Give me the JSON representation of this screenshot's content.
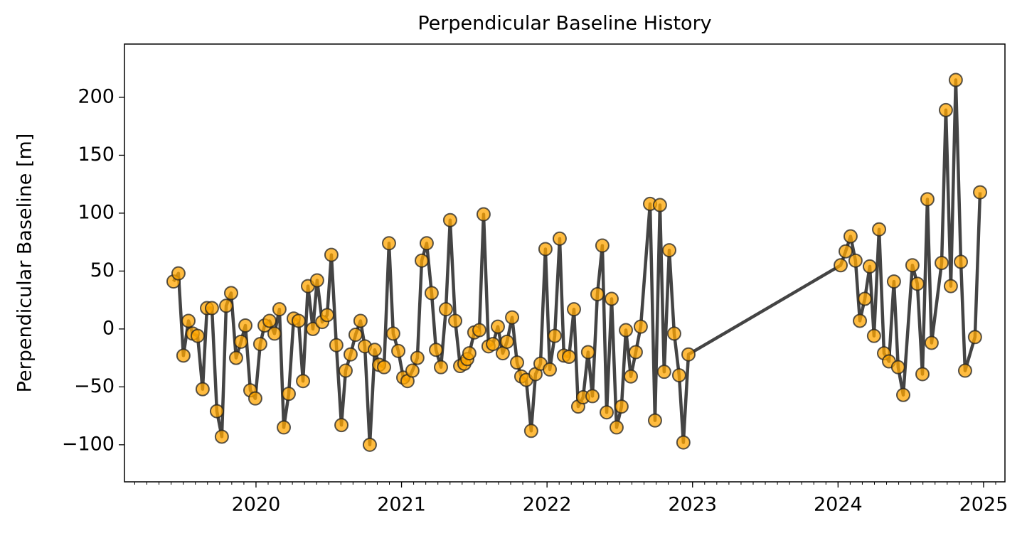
{
  "chart_data": {
    "type": "line",
    "title": "Perpendicular Baseline History",
    "y_label": "Perpendicular Baseline [m]",
    "xlim": [
      2019.096,
      2025.147
    ],
    "xticks": [
      2020,
      2021,
      2022,
      2023,
      2024,
      2025
    ],
    "ylim": [
      -132,
      246
    ],
    "yticks": [
      {
        "value": -100,
        "label": "−100"
      },
      {
        "value": -50,
        "label": "−50"
      },
      0,
      50,
      100,
      150,
      200
    ],
    "grid": false,
    "series": [
      {
        "name": "Perpendicular Baseline",
        "color": "#ffa500",
        "line_color": "#444444",
        "x": [
          2019.433,
          2019.467,
          2019.501,
          2019.536,
          2019.565,
          2019.599,
          2019.633,
          2019.663,
          2019.697,
          2019.731,
          2019.765,
          2019.795,
          2019.829,
          2019.863,
          2019.897,
          2019.927,
          2019.961,
          2019.995,
          2020.029,
          2020.059,
          2020.093,
          2020.127,
          2020.161,
          2020.191,
          2020.225,
          2020.259,
          2020.293,
          2020.323,
          2020.357,
          2020.391,
          2020.42,
          2020.455,
          2020.489,
          2020.518,
          2020.552,
          2020.587,
          2020.616,
          2020.65,
          2020.684,
          2020.718,
          2020.748,
          2020.782,
          2020.816,
          2020.846,
          2020.88,
          2020.914,
          2020.943,
          2020.978,
          2021.012,
          2021.041,
          2021.075,
          2021.109,
          2021.139,
          2021.173,
          2021.207,
          2021.237,
          2021.271,
          2021.305,
          2021.334,
          2021.369,
          2021.403,
          2021.432,
          2021.452,
          2021.466,
          2021.5,
          2021.535,
          2021.564,
          2021.598,
          2021.628,
          2021.662,
          2021.696,
          2021.725,
          2021.76,
          2021.794,
          2021.823,
          2021.857,
          2021.891,
          2021.921,
          2021.955,
          2021.989,
          2022.019,
          2022.053,
          2022.087,
          2022.116,
          2022.151,
          2022.185,
          2022.214,
          2022.248,
          2022.282,
          2022.312,
          2022.346,
          2022.38,
          2022.41,
          2022.444,
          2022.478,
          2022.512,
          2022.542,
          2022.576,
          2022.61,
          2022.644,
          2022.708,
          2022.742,
          2022.776,
          2022.805,
          2022.84,
          2022.874,
          2022.908,
          2022.937,
          2022.972,
          2024.018,
          2024.052,
          2024.086,
          2024.12,
          2024.15,
          2024.184,
          2024.218,
          2024.247,
          2024.282,
          2024.316,
          2024.35,
          2024.384,
          2024.413,
          2024.448,
          2024.511,
          2024.545,
          2024.58,
          2024.614,
          2024.643,
          2024.712,
          2024.741,
          2024.775,
          2024.809,
          2024.844,
          2024.873,
          2024.941,
          2024.976
        ],
        "values": [
          41,
          48,
          -23,
          7,
          -4,
          -6,
          -52,
          18,
          18,
          -71,
          -93,
          20,
          31,
          -25,
          -11,
          3,
          -53,
          -60,
          -13,
          3,
          7,
          -4,
          17,
          -85,
          -56,
          9,
          7,
          -45,
          37,
          0,
          42,
          6,
          12,
          64,
          -14,
          -83,
          -36,
          -22,
          -5,
          7,
          -15,
          -100,
          -18,
          -31,
          -33,
          74,
          -4,
          -19,
          -42,
          -45,
          -36,
          -25,
          59,
          74,
          31,
          -18,
          -33,
          17,
          94,
          7,
          -32,
          -30,
          -26,
          -21,
          -3,
          -1,
          99,
          -15,
          -13,
          2,
          -21,
          -11,
          10,
          -29,
          -41,
          -44,
          -88,
          -39,
          -30,
          69,
          -35,
          -6,
          78,
          -23,
          -24,
          17,
          -67,
          -59,
          -20,
          -58,
          30,
          72,
          -72,
          26,
          -85,
          -67,
          -1,
          -41,
          -20,
          2,
          108,
          -79,
          107,
          -37,
          68,
          -4,
          -40,
          -98,
          -22,
          55,
          67,
          80,
          59,
          7,
          26,
          54,
          -6,
          86,
          -21,
          -28,
          41,
          -33,
          -57,
          55,
          39,
          -39,
          112,
          -12,
          57,
          189,
          37,
          215,
          58,
          -36,
          -7,
          118
        ]
      }
    ]
  }
}
